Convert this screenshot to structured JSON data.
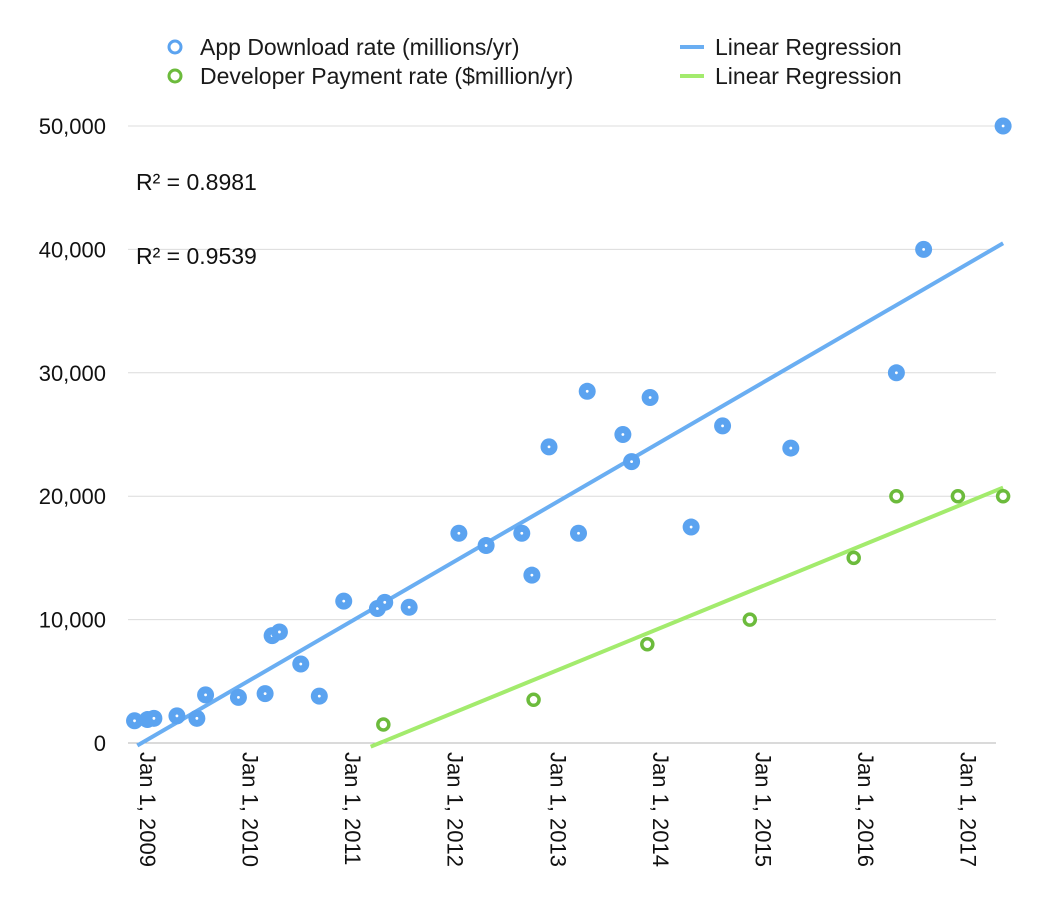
{
  "chart_data": {
    "type": "scatter",
    "title": "",
    "xlabel": "",
    "ylabel": "",
    "ylim": [
      0,
      50000
    ],
    "y_ticks": [
      0,
      10000,
      20000,
      30000,
      40000,
      50000
    ],
    "y_tick_labels": [
      "0",
      "10,000",
      "20,000",
      "30,000",
      "40,000",
      "50,000"
    ],
    "x_ticks": [
      "2009-01-01",
      "2010-01-01",
      "2011-01-01",
      "2012-01-01",
      "2013-01-01",
      "2014-01-01",
      "2015-01-01",
      "2016-01-01",
      "2017-01-01"
    ],
    "x_tick_labels": [
      "Jan 1, 2009",
      "Jan 1, 2010",
      "Jan 1, 2011",
      "Jan 1, 2012",
      "Jan 1, 2013",
      "Jan 1, 2014",
      "Jan 1, 2015",
      "Jan 1, 2016",
      "Jan 1, 2017"
    ],
    "x_range": [
      "2009-01-01",
      "2017-07-01"
    ],
    "grid": "horizontal",
    "legend_position": "top",
    "colors": {
      "downloads": "#5ba3f0",
      "downloads_line": "#6aaef2",
      "payments": "#6cbb3c",
      "payments_line": "#a3eb6d"
    },
    "series": [
      {
        "name": "App Download rate (millions/yr)",
        "points": [
          [
            "2009-01-10",
            1800
          ],
          [
            "2009-02-25",
            1900
          ],
          [
            "2009-03-20",
            2000
          ],
          [
            "2009-06-10",
            2200
          ],
          [
            "2009-08-20",
            2000
          ],
          [
            "2009-09-20",
            3900
          ],
          [
            "2010-01-15",
            3700
          ],
          [
            "2010-04-20",
            4000
          ],
          [
            "2010-05-15",
            8700
          ],
          [
            "2010-06-10",
            9000
          ],
          [
            "2010-08-25",
            6400
          ],
          [
            "2010-10-30",
            3800
          ],
          [
            "2011-01-25",
            11500
          ],
          [
            "2011-05-25",
            10900
          ],
          [
            "2011-06-20",
            11400
          ],
          [
            "2011-09-15",
            11000
          ],
          [
            "2012-03-10",
            17000
          ],
          [
            "2012-06-15",
            16000
          ],
          [
            "2012-10-20",
            17000
          ],
          [
            "2012-11-25",
            13600
          ],
          [
            "2013-01-25",
            24000
          ],
          [
            "2013-05-10",
            17000
          ],
          [
            "2013-06-10",
            28500
          ],
          [
            "2013-10-15",
            25000
          ],
          [
            "2013-11-15",
            22800
          ],
          [
            "2014-01-20",
            28000
          ],
          [
            "2014-06-15",
            17500
          ],
          [
            "2014-10-05",
            25700
          ],
          [
            "2015-06-05",
            23900
          ],
          [
            "2016-06-15",
            30000
          ],
          [
            "2016-09-20",
            40000
          ],
          [
            "2017-06-30",
            50000
          ]
        ],
        "regression": {
          "label": "Linear Regression",
          "r2_label": "R² = 0.8981",
          "from": [
            "2009-01-20",
            -200
          ],
          "to": [
            "2017-06-30",
            40500
          ]
        }
      },
      {
        "name": "Developer Payment rate ($million/yr)",
        "points": [
          [
            "2011-06-15",
            1500
          ],
          [
            "2012-12-01",
            3500
          ],
          [
            "2014-01-10",
            8000
          ],
          [
            "2015-01-10",
            10000
          ],
          [
            "2016-01-15",
            15000
          ],
          [
            "2016-06-15",
            20000
          ],
          [
            "2017-01-20",
            20000
          ],
          [
            "2017-06-30",
            20000
          ]
        ],
        "regression": {
          "label": "Linear Regression",
          "r2_label": "R² = 0.9539",
          "from": [
            "2011-05-01",
            -300
          ],
          "to": [
            "2017-06-30",
            20700
          ]
        }
      }
    ]
  }
}
